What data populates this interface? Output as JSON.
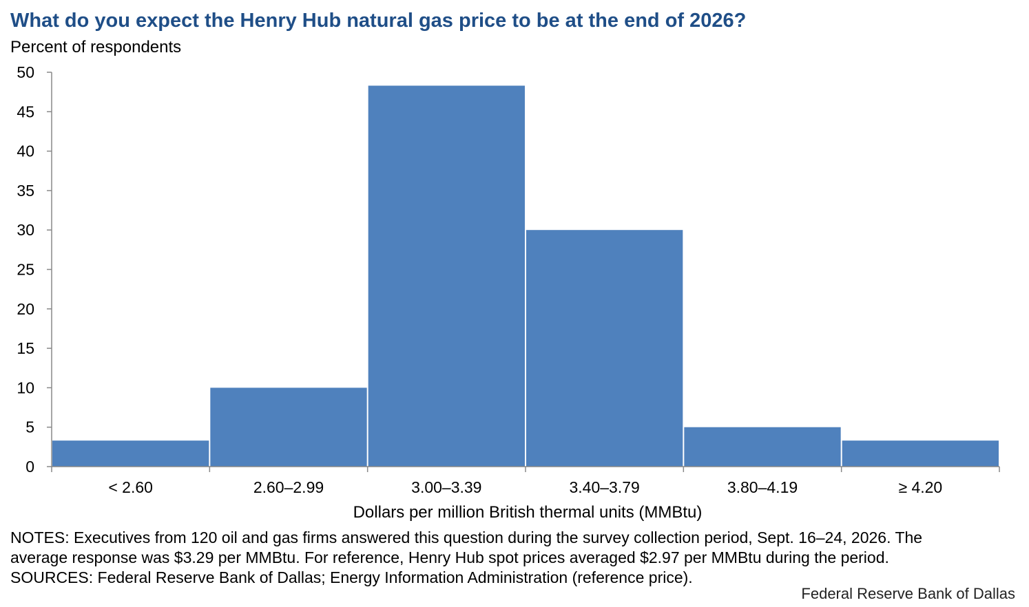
{
  "header": {
    "title": "What do you expect the Henry Hub natural gas price to be at the end of 2026?",
    "subtitle": "Percent of respondents"
  },
  "chart_data": {
    "type": "bar",
    "categories": [
      "< 2.60",
      "2.60–2.99",
      "3.00–3.39",
      "3.40–3.79",
      "3.80–4.19",
      "≥ 4.20"
    ],
    "values": [
      3.3,
      10.0,
      48.3,
      30.0,
      5.0,
      3.3
    ],
    "xlabel": "Dollars per million British thermal units (MMBtu)",
    "ylabel": "Percent of respondents",
    "ylim": [
      0,
      50
    ],
    "yticks": [
      0,
      5,
      10,
      15,
      20,
      25,
      30,
      35,
      40,
      45,
      50
    ],
    "bar_color": "#4F81BD",
    "grid": false,
    "legend": "none"
  },
  "footer": {
    "notes_line1": "NOTES: Executives from 120 oil and gas firms answered this question during the survey collection period, Sept. 16–24, 2026. The",
    "notes_line2": "average response was $3.29 per MMBtu. For reference, Henry Hub spot prices averaged $2.97 per MMBtu during the period.",
    "sources": "SOURCES: Federal Reserve Bank of Dallas; Energy Information Administration (reference price).",
    "credit": "Federal Reserve Bank of Dallas"
  }
}
